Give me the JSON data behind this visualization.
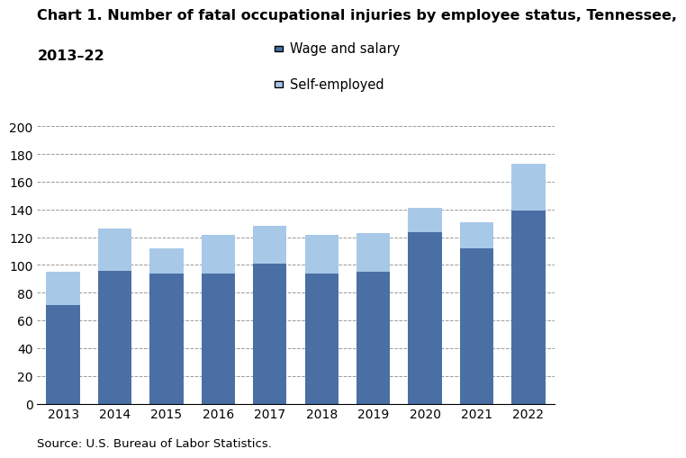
{
  "years": [
    2013,
    2014,
    2015,
    2016,
    2017,
    2018,
    2019,
    2020,
    2021,
    2022
  ],
  "wage_and_salary": [
    71,
    96,
    94,
    94,
    101,
    94,
    95,
    124,
    112,
    139
  ],
  "self_employed": [
    24,
    30,
    18,
    28,
    27,
    28,
    28,
    17,
    19,
    34
  ],
  "wage_color": "#4a6fa5",
  "self_color": "#a8c8e8",
  "title_line1": "Chart 1. Number of fatal occupational injuries by employee status, Tennessee,",
  "title_line2": "2013–22",
  "legend_wage": "Wage and salary",
  "legend_self": "Self-employed",
  "ylim": [
    0,
    200
  ],
  "yticks": [
    0,
    20,
    40,
    60,
    80,
    100,
    120,
    140,
    160,
    180,
    200
  ],
  "source": "Source: U.S. Bureau of Labor Statistics.",
  "title_fontsize": 11.5,
  "tick_fontsize": 10,
  "legend_fontsize": 10.5,
  "source_fontsize": 9.5
}
